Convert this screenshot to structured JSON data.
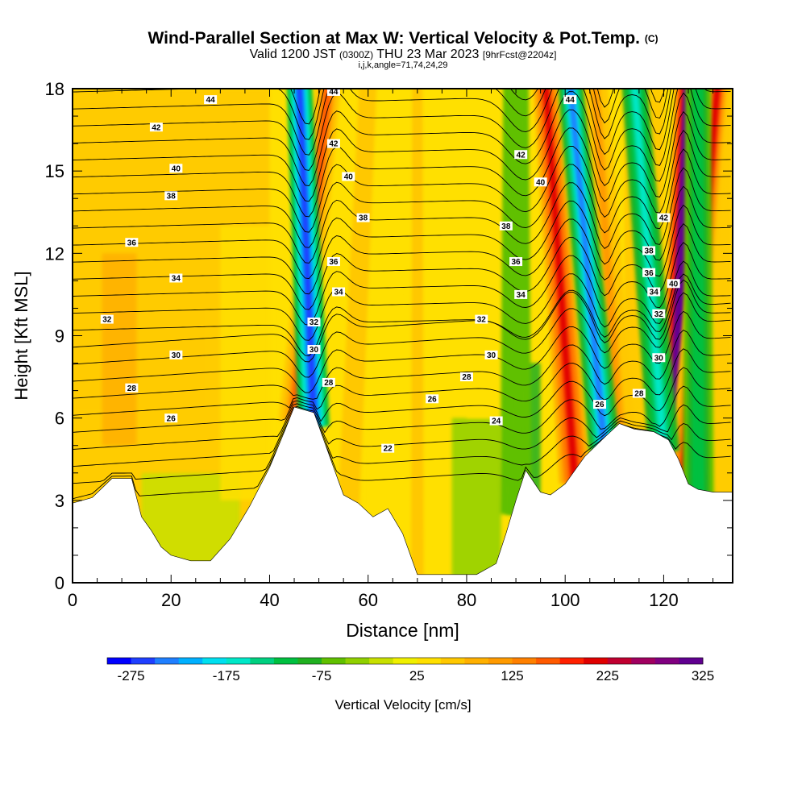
{
  "header": {
    "title": "Wind-Parallel Section at Max W: Vertical Velocity & Pot.Temp.",
    "copyright": "(C)",
    "valid_prefix": "Valid 1200 JST",
    "valid_utc": "(0300Z)",
    "valid_date": "THU 23 Mar 2023",
    "forecast": "[9hrFcst@2204z]",
    "indices": "i,j,k,angle=71,74,24,29"
  },
  "chart_data": {
    "type": "heatmap",
    "xlabel": "Distance [nm]",
    "ylabel": "Height [Kft MSL]",
    "xlim": [
      0,
      134
    ],
    "ylim": [
      0,
      18
    ],
    "x_ticks": [
      0,
      20,
      40,
      60,
      80,
      100,
      120
    ],
    "y_ticks": [
      0,
      3,
      6,
      9,
      12,
      15,
      18
    ],
    "colorbar": {
      "label": "Vertical Velocity [cm/s]",
      "min": -300,
      "step": 25,
      "tick_labels": [
        "-275",
        "-175",
        "-75",
        "25",
        "125",
        "225",
        "325"
      ],
      "colors": [
        "#0000ff",
        "#1f3fff",
        "#1f7fff",
        "#00b0ff",
        "#00e0f0",
        "#00e8c8",
        "#00d080",
        "#00c040",
        "#20b020",
        "#60c000",
        "#90d000",
        "#c8e000",
        "#f0f000",
        "#ffe000",
        "#ffc800",
        "#ffb000",
        "#ff9a00",
        "#ff8000",
        "#ff5a00",
        "#ff2000",
        "#e00000",
        "#c00030",
        "#a00060",
        "#800080",
        "#600090"
      ]
    },
    "terrain_kft": [
      [
        0,
        2.9
      ],
      [
        4,
        3.1
      ],
      [
        8,
        3.8
      ],
      [
        12,
        3.8
      ],
      [
        14,
        2.4
      ],
      [
        16,
        1.9
      ],
      [
        18,
        1.3
      ],
      [
        20,
        1
      ],
      [
        24,
        0.8
      ],
      [
        28,
        0.8
      ],
      [
        32,
        1.6
      ],
      [
        36,
        2.8
      ],
      [
        40,
        4.2
      ],
      [
        43,
        5.5
      ],
      [
        45,
        6.4
      ],
      [
        47,
        6.3
      ],
      [
        49,
        6.2
      ],
      [
        51,
        5.2
      ],
      [
        53,
        4.2
      ],
      [
        55,
        3.2
      ],
      [
        58,
        2.9
      ],
      [
        61,
        2.4
      ],
      [
        64,
        2.7
      ],
      [
        67,
        1.8
      ],
      [
        70,
        0.3
      ],
      [
        74,
        0.3
      ],
      [
        78,
        0.3
      ],
      [
        82,
        0.3
      ],
      [
        86,
        0.7
      ],
      [
        88,
        1.8
      ],
      [
        90,
        3
      ],
      [
        92,
        4.1
      ],
      [
        95,
        3.3
      ],
      [
        97,
        3.2
      ],
      [
        100,
        3.6
      ],
      [
        104,
        4.6
      ],
      [
        108,
        5.3
      ],
      [
        111,
        5.8
      ],
      [
        114,
        5.6
      ],
      [
        118,
        5.5
      ],
      [
        121,
        5.2
      ],
      [
        123,
        4.5
      ],
      [
        125,
        3.6
      ],
      [
        127,
        3.4
      ],
      [
        130,
        3.3
      ],
      [
        134,
        3.3
      ]
    ],
    "updraft_bands": [
      {
        "x_bottom": 45,
        "x_top": 52,
        "peak_cms": 160
      },
      {
        "x_bottom": 56,
        "x_top": 60,
        "peak_cms": 70
      },
      {
        "x_bottom": 70,
        "x_top": 70,
        "peak_cms": 60
      },
      {
        "x_bottom": 102,
        "x_top": 96,
        "peak_cms": 220
      },
      {
        "x_bottom": 111,
        "x_top": 106,
        "peak_cms": 110
      },
      {
        "x_bottom": 122,
        "x_top": 125,
        "peak_cms": 360
      },
      {
        "x_bottom": 124,
        "x_top": 131,
        "peak_cms": 200
      }
    ],
    "downdraft_bands": [
      {
        "x_bottom": 49,
        "x_top": 46,
        "peak_cms": -275
      },
      {
        "x_bottom": 90,
        "x_top": 90,
        "peak_cms": -60
      },
      {
        "x_bottom": 108,
        "x_top": 101,
        "peak_cms": -250
      },
      {
        "x_bottom": 120,
        "x_top": 114,
        "peak_cms": -175
      },
      {
        "x_bottom": 127,
        "x_top": 127,
        "peak_cms": -120
      }
    ],
    "theta_levels": [
      24,
      26,
      28,
      30,
      32,
      34,
      36,
      38,
      40,
      42,
      44
    ],
    "contour_labels": [
      {
        "text": "44",
        "x": 28,
        "y": 17.6
      },
      {
        "text": "42",
        "x": 17,
        "y": 16.6
      },
      {
        "text": "40",
        "x": 21,
        "y": 15.1
      },
      {
        "text": "38",
        "x": 20,
        "y": 14.1
      },
      {
        "text": "36",
        "x": 12,
        "y": 12.4
      },
      {
        "text": "34",
        "x": 21,
        "y": 11.1
      },
      {
        "text": "32",
        "x": 7,
        "y": 9.6
      },
      {
        "text": "30",
        "x": 21,
        "y": 8.3
      },
      {
        "text": "28",
        "x": 12,
        "y": 7.1
      },
      {
        "text": "26",
        "x": 20,
        "y": 6
      },
      {
        "text": "44",
        "x": 53,
        "y": 17.9
      },
      {
        "text": "42",
        "x": 53,
        "y": 16
      },
      {
        "text": "40",
        "x": 56,
        "y": 14.8
      },
      {
        "text": "38",
        "x": 59,
        "y": 13.3
      },
      {
        "text": "36",
        "x": 53,
        "y": 11.7
      },
      {
        "text": "34",
        "x": 54,
        "y": 10.6
      },
      {
        "text": "32",
        "x": 49,
        "y": 9.5
      },
      {
        "text": "30",
        "x": 49,
        "y": 8.5
      },
      {
        "text": "28",
        "x": 52,
        "y": 7.3
      },
      {
        "text": "26",
        "x": 73,
        "y": 6.7
      },
      {
        "text": "22",
        "x": 64,
        "y": 4.9
      },
      {
        "text": "24",
        "x": 86,
        "y": 5.9
      },
      {
        "text": "28",
        "x": 80,
        "y": 7.5
      },
      {
        "text": "30",
        "x": 85,
        "y": 8.3
      },
      {
        "text": "32",
        "x": 83,
        "y": 9.6
      },
      {
        "text": "34",
        "x": 91,
        "y": 10.5
      },
      {
        "text": "36",
        "x": 90,
        "y": 11.7
      },
      {
        "text": "38",
        "x": 88,
        "y": 13
      },
      {
        "text": "40",
        "x": 95,
        "y": 14.6
      },
      {
        "text": "42",
        "x": 91,
        "y": 15.6
      },
      {
        "text": "44",
        "x": 101,
        "y": 17.6
      },
      {
        "text": "42",
        "x": 120,
        "y": 13.3
      },
      {
        "text": "38",
        "x": 117,
        "y": 12.1
      },
      {
        "text": "36",
        "x": 117,
        "y": 11.3
      },
      {
        "text": "34",
        "x": 118,
        "y": 10.6
      },
      {
        "text": "32",
        "x": 119,
        "y": 9.8
      },
      {
        "text": "40",
        "x": 122,
        "y": 10.9
      },
      {
        "text": "30",
        "x": 119,
        "y": 8.2
      },
      {
        "text": "28",
        "x": 115,
        "y": 6.9
      },
      {
        "text": "26",
        "x": 107,
        "y": 6.5
      }
    ]
  }
}
